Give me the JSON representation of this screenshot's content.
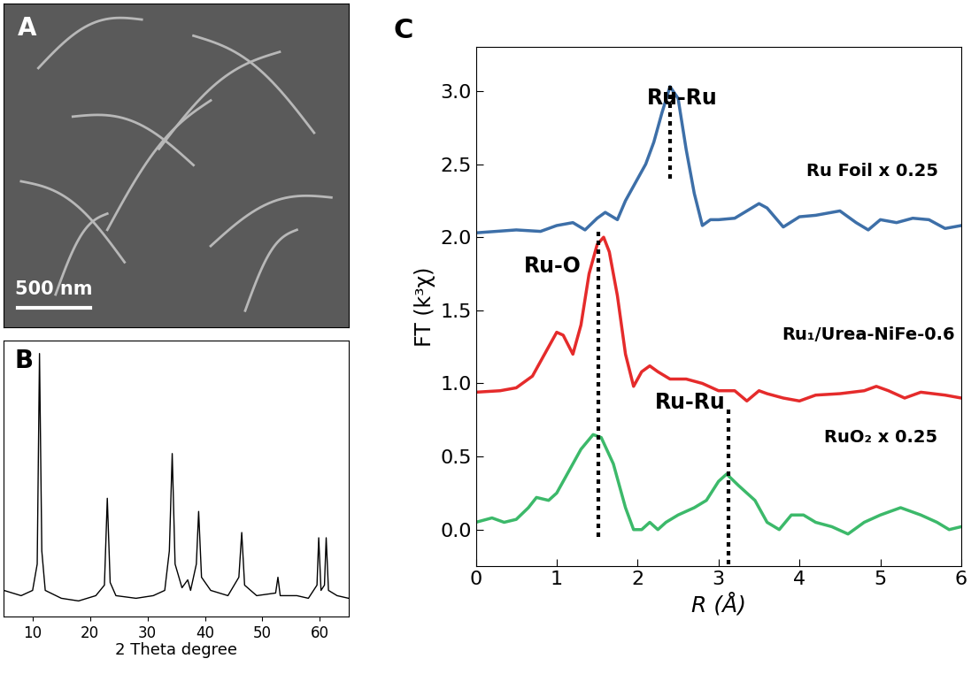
{
  "chart_data": [
    {
      "type": "image",
      "panel_label": "A",
      "scale_bar": "500 nm"
    },
    {
      "type": "line",
      "panel_label": "B",
      "x_label": "2 Theta degree",
      "xlim": [
        5,
        65
      ],
      "xticks": [
        10,
        20,
        30,
        40,
        50,
        60
      ],
      "ylim": [
        0,
        1.05
      ],
      "yticks": [],
      "tick_labels": "x",
      "color": "#000000",
      "x": [
        5,
        8,
        10,
        10.8,
        11.2,
        11.6,
        12.2,
        15,
        18,
        21,
        22.5,
        23.0,
        23.5,
        24.5,
        28,
        31,
        33,
        33.8,
        34.3,
        34.8,
        36,
        37,
        37.5,
        38.5,
        38.9,
        39.4,
        41,
        44,
        45.9,
        46.4,
        46.9,
        49,
        52.3,
        52.7,
        53.1,
        56,
        58,
        59.5,
        59.8,
        60.2,
        60.8,
        61.1,
        61.5,
        63,
        65
      ],
      "values": [
        0.1,
        0.08,
        0.1,
        0.2,
        1.0,
        0.25,
        0.1,
        0.07,
        0.06,
        0.08,
        0.12,
        0.45,
        0.13,
        0.08,
        0.07,
        0.08,
        0.1,
        0.25,
        0.62,
        0.2,
        0.11,
        0.14,
        0.1,
        0.2,
        0.4,
        0.15,
        0.1,
        0.08,
        0.15,
        0.32,
        0.12,
        0.08,
        0.09,
        0.15,
        0.08,
        0.08,
        0.07,
        0.12,
        0.3,
        0.1,
        0.12,
        0.3,
        0.1,
        0.08,
        0.07
      ]
    },
    {
      "type": "line",
      "panel_label": "C",
      "x_label": "R (Å)",
      "y_label": "FT (k³χ)",
      "xlim": [
        0,
        6
      ],
      "xticks": [
        0,
        1,
        2,
        3,
        4,
        5,
        6
      ],
      "ylim": [
        -0.25,
        3.3
      ],
      "yticks": [
        {
          "value": 0.0,
          "label": "0.0"
        },
        {
          "value": 0.5,
          "label": "0.5"
        },
        {
          "value": 1.0,
          "label": "1.0"
        },
        {
          "value": 1.5,
          "label": "1.5"
        },
        {
          "value": 2.0,
          "label": "2.0"
        },
        {
          "value": 2.5,
          "label": "2.5"
        },
        {
          "value": 3.0,
          "label": "3.0"
        }
      ],
      "series": [
        {
          "color": "#3d6fa8",
          "x": [
            0,
            0.5,
            0.8,
            1.0,
            1.2,
            1.35,
            1.5,
            1.6,
            1.75,
            1.85,
            2.0,
            2.1,
            2.2,
            2.3,
            2.4,
            2.5,
            2.6,
            2.7,
            2.8,
            2.9,
            3.0,
            3.2,
            3.5,
            3.6,
            3.8,
            4.0,
            4.2,
            4.5,
            4.7,
            4.85,
            5.0,
            5.2,
            5.4,
            5.6,
            5.8,
            6.0
          ],
          "values": [
            2.03,
            2.05,
            2.04,
            2.08,
            2.1,
            2.05,
            2.13,
            2.17,
            2.12,
            2.25,
            2.4,
            2.5,
            2.65,
            2.85,
            3.03,
            2.95,
            2.6,
            2.3,
            2.08,
            2.12,
            2.12,
            2.13,
            2.23,
            2.2,
            2.07,
            2.14,
            2.15,
            2.18,
            2.1,
            2.05,
            2.12,
            2.1,
            2.13,
            2.12,
            2.06,
            2.08
          ]
        },
        {
          "color": "#e52b2b",
          "x": [
            0,
            0.3,
            0.5,
            0.7,
            0.85,
            1.0,
            1.08,
            1.2,
            1.3,
            1.4,
            1.5,
            1.58,
            1.65,
            1.75,
            1.85,
            1.95,
            2.05,
            2.15,
            2.25,
            2.4,
            2.6,
            2.8,
            3.0,
            3.2,
            3.35,
            3.5,
            3.6,
            3.8,
            4.0,
            4.2,
            4.5,
            4.8,
            4.95,
            5.1,
            5.3,
            5.5,
            5.8,
            6.0
          ],
          "values": [
            0.94,
            0.95,
            0.97,
            1.05,
            1.2,
            1.35,
            1.33,
            1.2,
            1.4,
            1.75,
            1.95,
            2.0,
            1.9,
            1.6,
            1.2,
            0.98,
            1.08,
            1.12,
            1.08,
            1.03,
            1.03,
            1.0,
            0.95,
            0.95,
            0.88,
            0.95,
            0.93,
            0.9,
            0.88,
            0.92,
            0.93,
            0.95,
            0.98,
            0.95,
            0.9,
            0.94,
            0.92,
            0.9
          ]
        },
        {
          "color": "#3cb96a",
          "x": [
            0,
            0.2,
            0.35,
            0.5,
            0.65,
            0.75,
            0.9,
            1.0,
            1.15,
            1.3,
            1.45,
            1.55,
            1.7,
            1.85,
            1.95,
            2.05,
            2.15,
            2.25,
            2.35,
            2.5,
            2.7,
            2.85,
            3.0,
            3.1,
            3.25,
            3.45,
            3.6,
            3.75,
            3.9,
            4.05,
            4.2,
            4.4,
            4.6,
            4.8,
            5.0,
            5.25,
            5.5,
            5.7,
            5.85,
            6.0
          ],
          "values": [
            0.05,
            0.08,
            0.05,
            0.07,
            0.15,
            0.22,
            0.2,
            0.25,
            0.4,
            0.55,
            0.65,
            0.63,
            0.45,
            0.15,
            0.0,
            0.0,
            0.05,
            0.0,
            0.05,
            0.1,
            0.15,
            0.2,
            0.33,
            0.38,
            0.3,
            0.2,
            0.05,
            0.0,
            0.1,
            0.1,
            0.05,
            0.02,
            -0.03,
            0.05,
            0.1,
            0.15,
            0.1,
            0.05,
            0.0,
            0.02
          ]
        }
      ],
      "reference_lines": [
        {
          "x": 2.4,
          "y": [
            2.4,
            3.05
          ]
        },
        {
          "x": 1.52,
          "y": [
            -0.05,
            2.05
          ]
        },
        {
          "x": 3.12,
          "y": [
            -0.3,
            0.82
          ]
        }
      ],
      "annotations": [
        {
          "text": "Ru-Ru",
          "x": 2.55,
          "y": 2.95
        },
        {
          "text": "Ru Foil x 0.25",
          "x": 4.9,
          "y": 2.45
        },
        {
          "text": "Ru-O",
          "x": 0.95,
          "y": 1.8
        },
        {
          "text": "Ru₁/Urea-NiFe-0.6",
          "x": 4.85,
          "y": 1.33
        },
        {
          "text": "Ru-Ru",
          "x": 2.65,
          "y": 0.87
        },
        {
          "text": "RuO₂ x 0.25",
          "x": 5.0,
          "y": 0.63
        }
      ]
    }
  ]
}
